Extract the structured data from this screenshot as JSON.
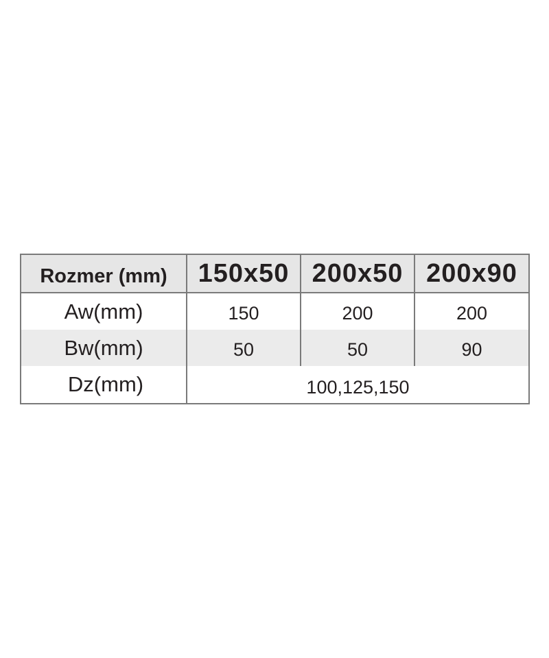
{
  "table": {
    "header": [
      "Rozmer (mm)",
      "150x50",
      "200x50",
      "200x90"
    ],
    "rows": [
      {
        "label": "Aw(mm)",
        "values": [
          "150",
          "200",
          "200"
        ]
      },
      {
        "label": "Bw(mm)",
        "values": [
          "50",
          "50",
          "90"
        ]
      },
      {
        "label": "Dz(mm)",
        "value": "100,125,150"
      }
    ]
  }
}
